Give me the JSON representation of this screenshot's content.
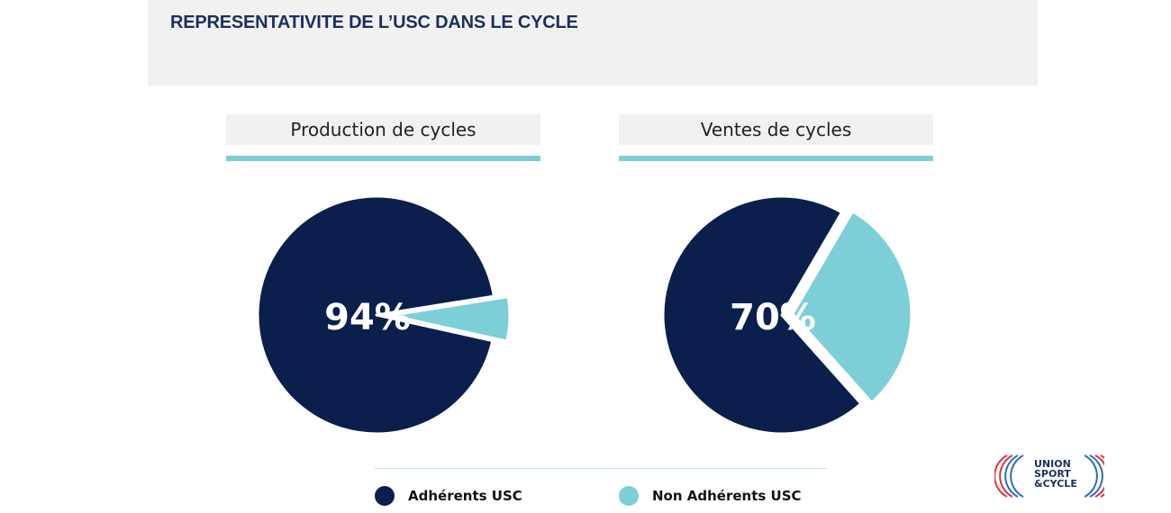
{
  "page_title": "REPRESENTATIVITE DE L’USC DANS LE CYCLE",
  "colors": {
    "adherents": "#0b1f4d",
    "non_adherents": "#7ccfd6",
    "title": "#1b2f5e"
  },
  "chart_data": [
    {
      "type": "pie",
      "title": "Production de cycles",
      "labels": [
        "Adhérents USC",
        "Non Adhérents USC"
      ],
      "values": [
        94,
        6
      ],
      "data_label": "94%",
      "exploded_slice": "Non Adhérents USC"
    },
    {
      "type": "pie",
      "title": "Ventes de cycles",
      "labels": [
        "Adhérents USC",
        "Non Adhérents USC"
      ],
      "values": [
        70,
        30
      ],
      "data_label": "70%",
      "exploded_slice": "Non Adhérents USC"
    }
  ],
  "legend": {
    "items": [
      {
        "label": "Adhérents USC",
        "color": "#0b1f4d"
      },
      {
        "label": "Non Adhérents USC",
        "color": "#7ccfd6"
      }
    ]
  },
  "logo": {
    "lines": [
      "UNION",
      "SPORT",
      "&CYCLE"
    ]
  }
}
